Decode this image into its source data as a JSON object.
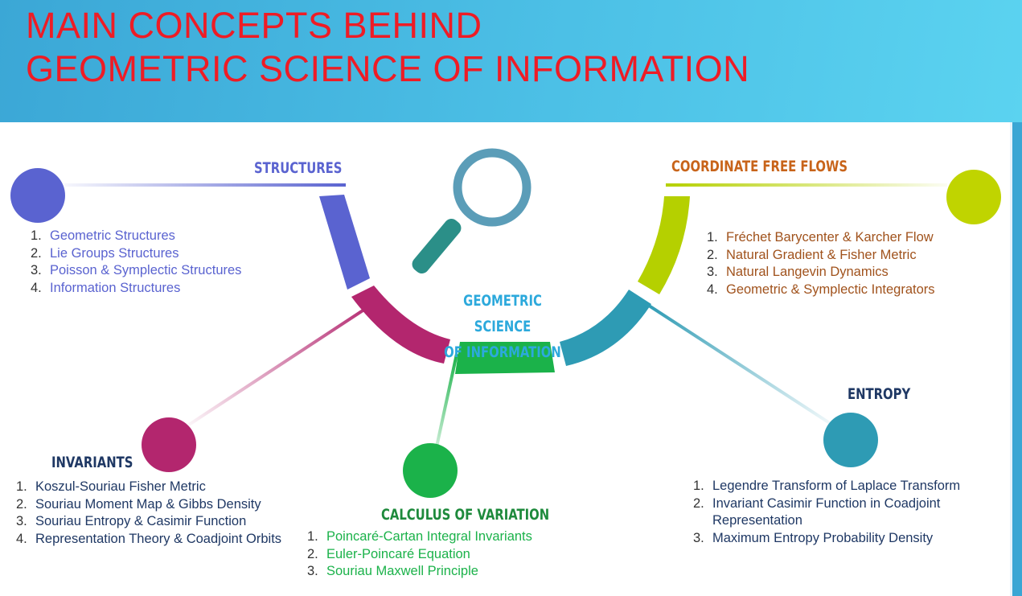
{
  "header": {
    "title_line1": "MAIN CONCEPTS BEHIND",
    "title_line2": "GEOMETRIC SCIENCE OF INFORMATION"
  },
  "colors": {
    "title": "#ee1c25",
    "structures": "#5a63d0",
    "coordinate_free_flows": "#b5d000",
    "invariants": "#b3266e",
    "calculus": "#1bb24a",
    "entropy": "#2e9bb4",
    "center": "#2ca9dc",
    "magnifier_ring": "#5b9db8",
    "magnifier_handle": "#2b8f88"
  },
  "center": {
    "title_line1": "GEOMETRIC SCIENCE",
    "title_line2": "OF INFORMATION",
    "icon": "magnifying-glass-icon"
  },
  "structures": {
    "heading": "STRUCTURES",
    "items": [
      {
        "num": "1.",
        "text": "Geometric Structures"
      },
      {
        "num": "2.",
        "text": "Lie Groups Structures"
      },
      {
        "num": "3.",
        "text": "Poisson & Symplectic Structures"
      },
      {
        "num": "4.",
        "text": "Information Structures"
      }
    ]
  },
  "coordinate_free_flows": {
    "heading": "COORDINATE FREE FLOWS",
    "items": [
      {
        "num": "1.",
        "text": "Fréchet Barycenter & Karcher Flow"
      },
      {
        "num": "2.",
        "text": "Natural Gradient & Fisher Metric"
      },
      {
        "num": "3.",
        "text": "Natural Langevin Dynamics"
      },
      {
        "num": "4.",
        "text": "Geometric & Symplectic Integrators"
      }
    ]
  },
  "invariants": {
    "heading": "INVARIANTS",
    "items": [
      {
        "num": "1.",
        "text": "Koszul-Souriau Fisher Metric"
      },
      {
        "num": "2.",
        "text": "Souriau Moment Map & Gibbs Density"
      },
      {
        "num": "3.",
        "text": "Souriau Entropy & Casimir Function"
      },
      {
        "num": "4.",
        "text": "Representation Theory & Coadjoint Orbits"
      }
    ]
  },
  "calculus": {
    "heading": "CALCULUS OF VARIATION",
    "items": [
      {
        "num": "1.",
        "text": "Poincaré-Cartan Integral Invariants"
      },
      {
        "num": "2.",
        "text": "Euler-Poincaré Equation"
      },
      {
        "num": "3.",
        "text": "Souriau Maxwell Principle"
      }
    ]
  },
  "entropy": {
    "heading": "ENTROPY",
    "items": [
      {
        "num": "1.",
        "text": "Legendre Transform of Laplace Transform"
      },
      {
        "num": "2.",
        "text": "Invariant Casimir Function in Coadjoint Representation"
      },
      {
        "num": "3.",
        "text": "Maximum Entropy Probability Density"
      }
    ]
  }
}
